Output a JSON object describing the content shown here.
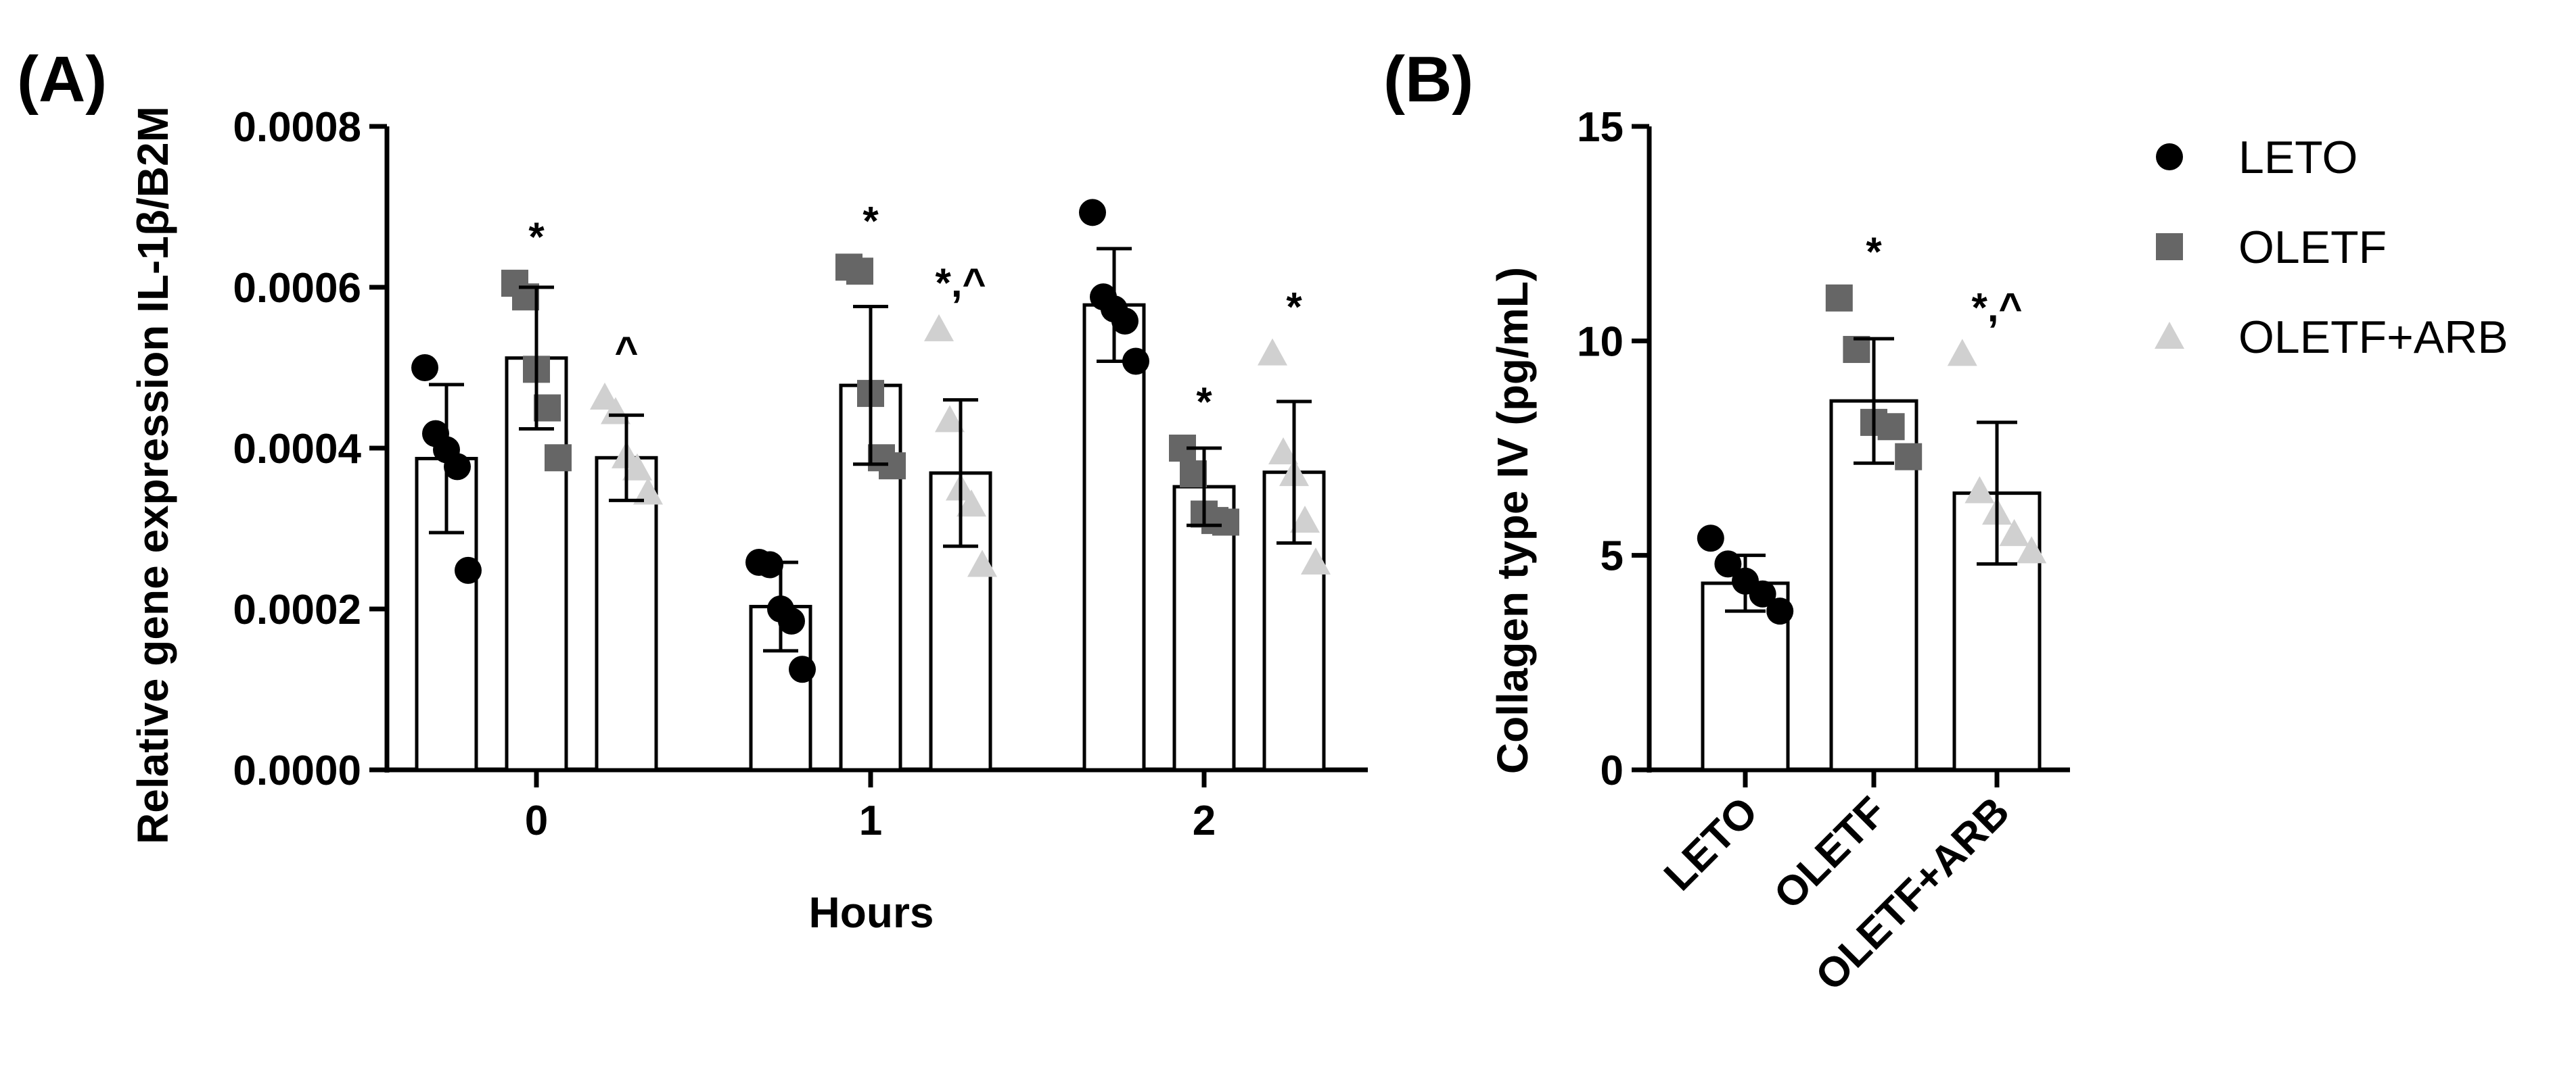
{
  "chart_data": [
    {
      "type": "bar",
      "panel_label": "(A)",
      "title": "",
      "xlabel": "Hours",
      "ylabel": "Relative gene expression IL-1β/B2M",
      "ylim": [
        0,
        0.0008
      ],
      "yticks": [
        "0.0000",
        "0.0002",
        "0.0004",
        "0.0006",
        "0.0008"
      ],
      "categories": [
        "0",
        "1",
        "2"
      ],
      "series": [
        {
          "name": "LETO",
          "color": "#000000",
          "marker": "circle",
          "values": [
            0.000387,
            0.000203,
            0.000578
          ],
          "errors": [
            9.2e-05,
            5.5e-05,
            7e-05
          ],
          "points": [
            [
              0.0005,
              0.000418,
              0.000398,
              0.000377,
              0.000248
            ],
            [
              0.000258,
              0.000255,
              0.0002,
              0.000185,
              0.000125
            ],
            [
              0.000693,
              0.000588,
              0.000573,
              0.000558,
              0.000508
            ]
          ],
          "significance": [
            "",
            "",
            ""
          ]
        },
        {
          "name": "OLETF",
          "color": "#666666",
          "marker": "square",
          "values": [
            0.000512,
            0.000478,
            0.000352
          ],
          "errors": [
            8.8e-05,
            9.8e-05,
            4.8e-05
          ],
          "points": [
            [
              0.000605,
              0.000588,
              0.000498,
              0.00045,
              0.000388
            ],
            [
              0.000625,
              0.00062,
              0.000468,
              0.000388,
              0.000378
            ],
            [
              0.0004,
              0.000368,
              0.000318,
              0.00031,
              0.000308
            ]
          ],
          "significance": [
            "*",
            "*",
            "*"
          ]
        },
        {
          "name": "OLETF+ARB",
          "color": "#d0d0d0",
          "marker": "triangle",
          "values": [
            0.000388,
            0.000369,
            0.00037
          ],
          "errors": [
            5.3e-05,
            9.1e-05,
            8.8e-05
          ],
          "points": [
            [
              0.000463,
              0.000445,
              0.00039,
              0.000375,
              0.000345
            ],
            [
              0.000548,
              0.000435,
              0.00035,
              0.00033,
              0.000255
            ],
            [
              0.000518,
              0.000395,
              0.000368,
              0.00031,
              0.000258
            ]
          ],
          "significance": [
            "^",
            "*,^",
            "*"
          ]
        }
      ]
    },
    {
      "type": "bar",
      "panel_label": "(B)",
      "title": "",
      "xlabel": "",
      "ylabel": "Collagen type IV (pg/mL)",
      "ylim": [
        0,
        15
      ],
      "yticks": [
        "0",
        "5",
        "10",
        "15"
      ],
      "categories": [
        "LETO",
        "OLETF",
        "OLETF+ARB"
      ],
      "values": [
        4.35,
        8.6,
        6.45
      ],
      "errors": [
        0.65,
        1.45,
        1.65
      ],
      "colors": [
        "#000000",
        "#666666",
        "#d0d0d0"
      ],
      "markers": [
        "circle",
        "square",
        "triangle"
      ],
      "points": [
        [
          5.4,
          4.8,
          4.4,
          4.1,
          3.7
        ],
        [
          11.0,
          9.8,
          8.1,
          8.0,
          7.3
        ],
        [
          9.7,
          6.5,
          6.0,
          5.5,
          5.1
        ]
      ],
      "significance": [
        "",
        "*",
        "*,^"
      ]
    }
  ],
  "legend": [
    {
      "label": "LETO",
      "marker": "circle",
      "color": "#000000"
    },
    {
      "label": "OLETF",
      "marker": "square",
      "color": "#666666"
    },
    {
      "label": "OLETF+ARB",
      "marker": "triangle",
      "color": "#d0d0d0"
    }
  ]
}
